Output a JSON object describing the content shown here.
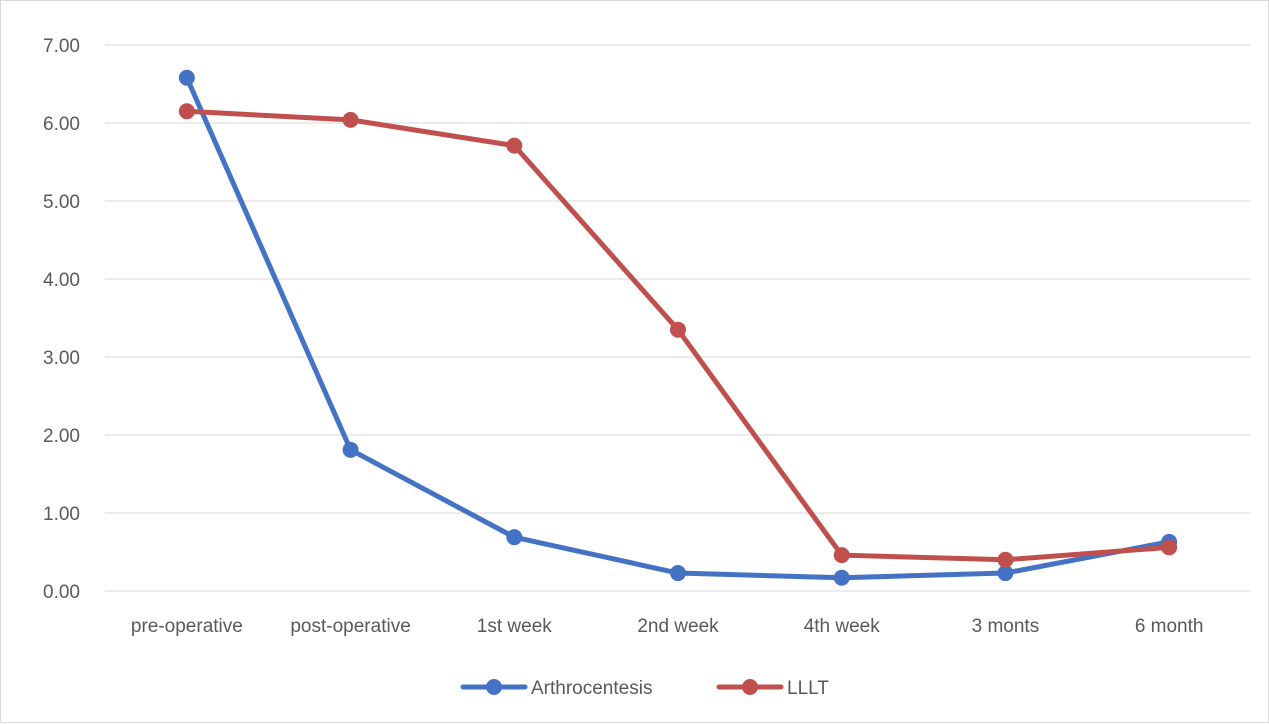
{
  "chart_data": {
    "type": "line",
    "title": "",
    "xlabel": "",
    "ylabel": "",
    "categories": [
      "pre-operative",
      "post-operative",
      "1st week",
      "2nd week",
      "4th week",
      "3 monts",
      "6 month"
    ],
    "ylim": [
      0,
      7
    ],
    "yticks": [
      "0.00",
      "1.00",
      "2.00",
      "3.00",
      "4.00",
      "5.00",
      "6.00",
      "7.00"
    ],
    "grid": true,
    "legend_position": "bottom",
    "series": [
      {
        "name": "Arthrocentesis",
        "color": "#4472c4",
        "values": [
          6.58,
          1.81,
          0.69,
          0.23,
          0.17,
          0.23,
          0.63
        ]
      },
      {
        "name": "LLLT",
        "color": "#c0504d",
        "values": [
          6.15,
          6.04,
          5.71,
          3.35,
          0.46,
          0.4,
          0.56
        ]
      }
    ]
  }
}
